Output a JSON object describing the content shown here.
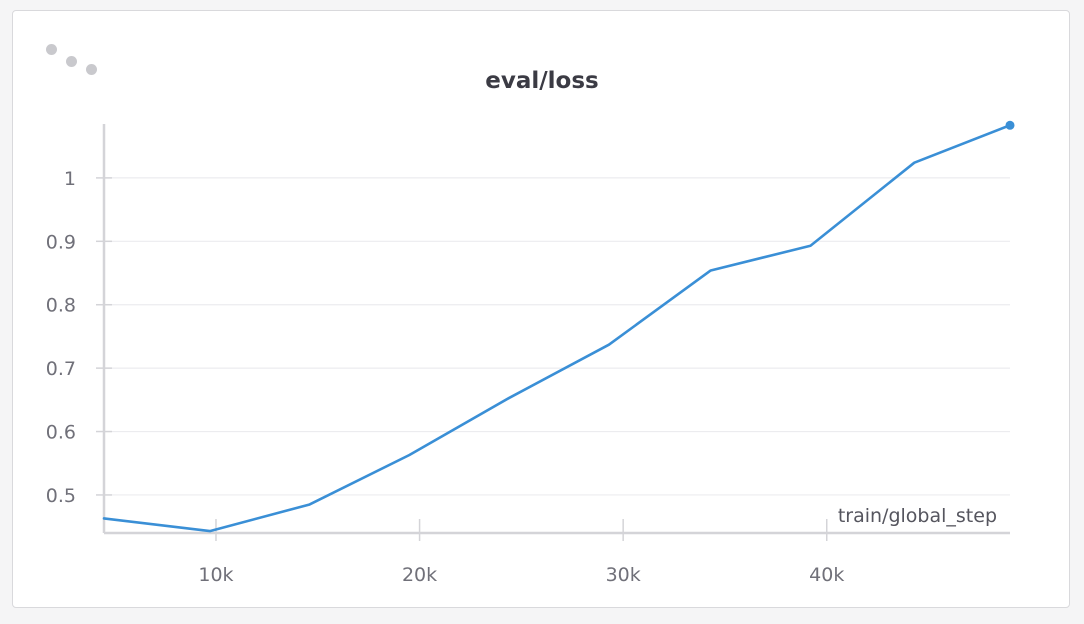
{
  "panel": {
    "title": "eval/loss",
    "menu_icon": "drag-handle-dots-icon"
  },
  "chart_data": {
    "type": "line",
    "title": "eval/loss",
    "xlabel": "train/global_step",
    "ylabel": "",
    "xlim": [
      4500,
      49000
    ],
    "ylim": [
      0.44,
      1.085
    ],
    "x_ticks": [
      10000,
      20000,
      30000,
      40000
    ],
    "x_tick_labels": [
      "10k",
      "20k",
      "30k",
      "40k"
    ],
    "y_ticks": [
      0.5,
      0.6,
      0.7,
      0.8,
      0.9,
      1.0
    ],
    "y_tick_labels": [
      "0.5",
      "0.6",
      "0.7",
      "0.8",
      "0.9",
      "1"
    ],
    "grid": true,
    "series": [
      {
        "color": "#3a8fd6",
        "x": [
          4500,
          9700,
          14600,
          19500,
          24400,
          29300,
          34300,
          39200,
          44300,
          49000
        ],
        "y": [
          0.463,
          0.443,
          0.485,
          0.563,
          0.653,
          0.737,
          0.854,
          0.893,
          1.024,
          1.083
        ]
      }
    ]
  }
}
